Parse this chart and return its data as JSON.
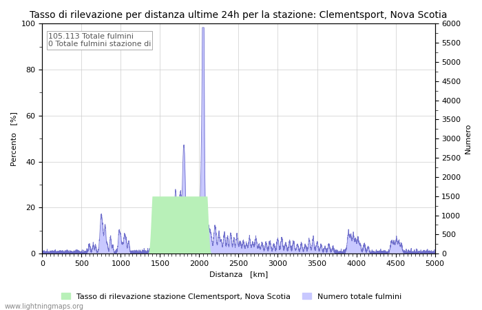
{
  "title": "Tasso di rilevazione per distanza ultime 24h per la stazione: Clementsport, Nova Scotia",
  "xlabel": "Distanza   [km]",
  "ylabel_left": "Percento   [%]",
  "ylabel_right": "Numero",
  "annotation_line1": "105.113 Totale fulmini",
  "annotation_line2": "0 Totale fulmini stazione di",
  "legend_label1": "Tasso di rilevazione stazione Clementsport, Nova Scotia",
  "legend_label2": "Numero totale fulmini",
  "watermark": "www.lightningmaps.org",
  "xlim": [
    0,
    5000
  ],
  "ylim_left": [
    0,
    100
  ],
  "ylim_right": [
    0,
    6000
  ],
  "xticks": [
    0,
    500,
    1000,
    1500,
    2000,
    2500,
    3000,
    3500,
    4000,
    4500,
    5000
  ],
  "yticks_left": [
    0,
    20,
    40,
    60,
    80,
    100
  ],
  "yticks_right": [
    0,
    500,
    1000,
    1500,
    2000,
    2500,
    3000,
    3500,
    4000,
    4500,
    5000,
    5500,
    6000
  ],
  "color_green": "#b8f0b8",
  "color_blue": "#c8c8ff",
  "color_line_blue": "#7070cc",
  "color_line_green": "#88cc88",
  "bg_color": "#ffffff",
  "title_fontsize": 10,
  "axis_fontsize": 8,
  "tick_fontsize": 8
}
